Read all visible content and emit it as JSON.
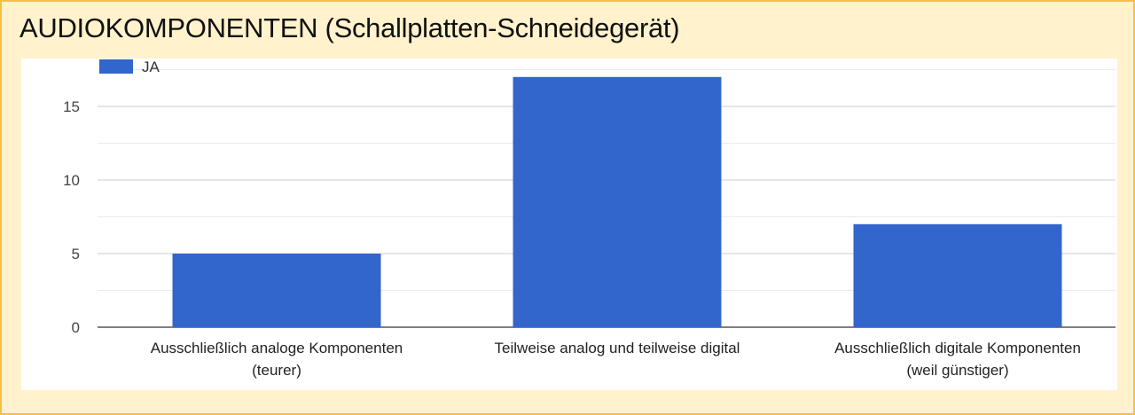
{
  "title": "AUDIOKOMPONENTEN (Schallplatten-Schneidegerät)",
  "colors": {
    "bar": "#3366cc",
    "background": "#fff2cc",
    "border": "#f6c143"
  },
  "chart_data": {
    "type": "bar",
    "title": "",
    "categories": [
      [
        "Ausschließlich analoge Komponenten",
        "(teurer)"
      ],
      [
        "Teilweise analog und teilweise digital"
      ],
      [
        "Ausschließlich digitale Komponenten",
        "(weil günstiger)"
      ]
    ],
    "series": [
      {
        "name": "JA",
        "values": [
          5,
          17,
          7
        ]
      }
    ],
    "yticks": [
      "0",
      "5",
      "10",
      "15"
    ],
    "ylim": [
      0,
      17.5
    ],
    "grid": true,
    "legend": "top-left",
    "xlabel": "",
    "ylabel": ""
  }
}
